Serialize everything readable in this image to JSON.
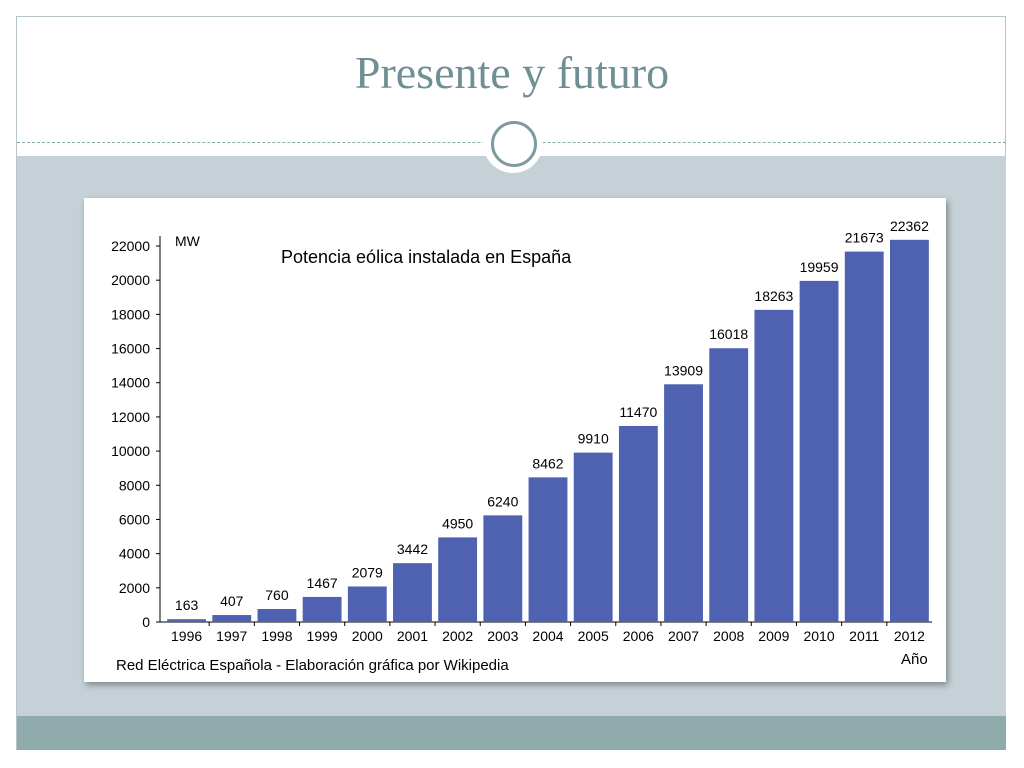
{
  "slide": {
    "title": "Presente y futuro"
  },
  "colors": {
    "title": "#6f8f94",
    "band": "#c5d1d6",
    "footer": "#8fabac",
    "bar": "#4e62b1"
  },
  "chart_data": {
    "type": "bar",
    "title": "Potencia eólica instalada en España",
    "ylabel": "MW",
    "xlabel": "Año",
    "source": "Red Eléctrica Española - Elaboración gráfica por Wikipedia",
    "categories": [
      "1996",
      "1997",
      "1998",
      "1999",
      "2000",
      "2001",
      "2002",
      "2003",
      "2004",
      "2005",
      "2006",
      "2007",
      "2008",
      "2009",
      "2010",
      "2011",
      "2012"
    ],
    "values": [
      163,
      407,
      760,
      1467,
      2079,
      3442,
      4950,
      6240,
      8462,
      9910,
      11470,
      13909,
      16018,
      18263,
      19959,
      21673,
      22362
    ],
    "ylim": [
      0,
      22000
    ],
    "yticks": [
      0,
      2000,
      4000,
      6000,
      8000,
      10000,
      12000,
      14000,
      16000,
      18000,
      20000,
      22000
    ],
    "grid": false,
    "legend": "none"
  }
}
